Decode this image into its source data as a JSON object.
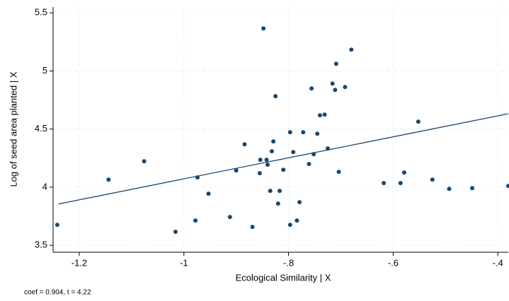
{
  "chart_data": {
    "type": "scatter",
    "x_label": "Ecological Similarity | X",
    "y_label": "Log of seed area planted | X",
    "note": "coef = 0.904, t = 4.22",
    "color": "#1a476f",
    "x": [
      -1.242,
      -1.144,
      -1.076,
      -1.016,
      -0.978,
      -0.974,
      -0.953,
      -0.912,
      -0.9,
      -0.884,
      -0.869,
      -0.855,
      -0.84,
      -0.832,
      -0.825,
      -0.854,
      -0.848,
      -0.842,
      -0.835,
      -0.829,
      -0.82,
      -0.817,
      -0.81,
      -0.797,
      -0.797,
      -0.791,
      -0.784,
      -0.779,
      -0.772,
      -0.761,
      -0.756,
      -0.752,
      -0.745,
      -0.74,
      -0.731,
      -0.725,
      -0.716,
      -0.711,
      -0.709,
      -0.704,
      -0.692,
      -0.68,
      -0.618,
      -0.586,
      -0.579,
      -0.552,
      -0.525,
      -0.493,
      -0.449,
      -0.38
    ],
    "values": [
      3.676,
      4.065,
      4.223,
      3.616,
      3.713,
      4.084,
      3.944,
      3.743,
      4.144,
      4.369,
      3.658,
      4.12,
      4.193,
      4.309,
      4.783,
      4.236,
      5.366,
      4.236,
      3.968,
      4.394,
      3.859,
      3.968,
      4.15,
      3.676,
      4.473,
      4.302,
      3.713,
      3.871,
      4.473,
      4.199,
      4.85,
      4.284,
      4.46,
      4.619,
      4.625,
      4.333,
      4.892,
      4.837,
      5.062,
      4.132,
      4.862,
      5.184,
      4.035,
      4.035,
      4.126,
      4.564,
      4.065,
      3.986,
      3.992,
      4.011
    ],
    "fit_line": {
      "x": [
        -1.24,
        -0.38
      ],
      "values": [
        3.855,
        4.632
      ]
    },
    "xlim": [
      -1.25,
      -0.38
    ],
    "ylim": [
      3.44,
      5.55
    ],
    "xticks": [
      -1.2,
      -1,
      {
        "value": -0.8,
        "label": "-.8"
      },
      {
        "value": -0.6,
        "label": "-.6"
      },
      {
        "value": -0.4,
        "label": "-.4"
      }
    ],
    "yticks": [
      3.5,
      4,
      4.5,
      5,
      5.5
    ],
    "grid": true
  }
}
